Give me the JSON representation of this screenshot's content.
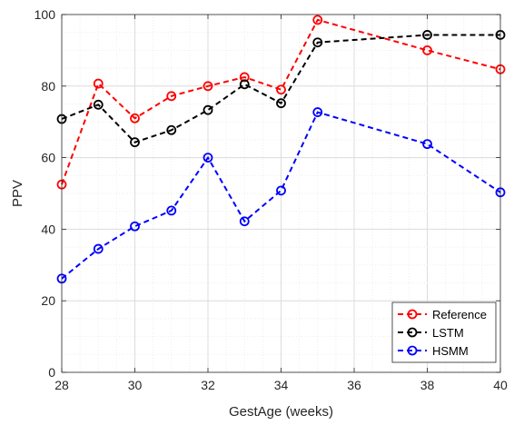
{
  "chart_data": {
    "type": "line",
    "title": "",
    "xlabel": "GestAge (weeks)",
    "ylabel": "PPV",
    "xlim": [
      28,
      40
    ],
    "ylim": [
      0,
      100
    ],
    "xticks": [
      28,
      30,
      32,
      34,
      36,
      38,
      40
    ],
    "yticks": [
      0,
      20,
      40,
      60,
      80,
      100
    ],
    "grid": true,
    "legend_position": "bottom-right",
    "series": [
      {
        "name": "Reference",
        "color": "#ff0000",
        "line_style": "dashed",
        "marker": "circle",
        "x": [
          28,
          29,
          30,
          31,
          32,
          33,
          34,
          35,
          38,
          40
        ],
        "y": [
          52.5,
          80.7,
          71.0,
          77.2,
          80.0,
          82.5,
          79.0,
          98.5,
          90.0,
          84.7
        ]
      },
      {
        "name": "LSTM",
        "color": "#000000",
        "line_style": "dashed",
        "marker": "circle",
        "x": [
          28,
          29,
          30,
          31,
          32,
          33,
          34,
          35,
          38,
          40
        ],
        "y": [
          70.8,
          74.8,
          64.3,
          67.7,
          73.3,
          80.5,
          75.2,
          92.2,
          94.3,
          94.3
        ]
      },
      {
        "name": "HSMM",
        "color": "#0000ff",
        "line_style": "dashed",
        "marker": "circle",
        "x": [
          28,
          29,
          30,
          31,
          32,
          33,
          34,
          35,
          38,
          40
        ],
        "y": [
          26.2,
          34.5,
          40.8,
          45.2,
          60.0,
          42.2,
          50.8,
          72.7,
          63.8,
          50.3
        ]
      }
    ]
  }
}
